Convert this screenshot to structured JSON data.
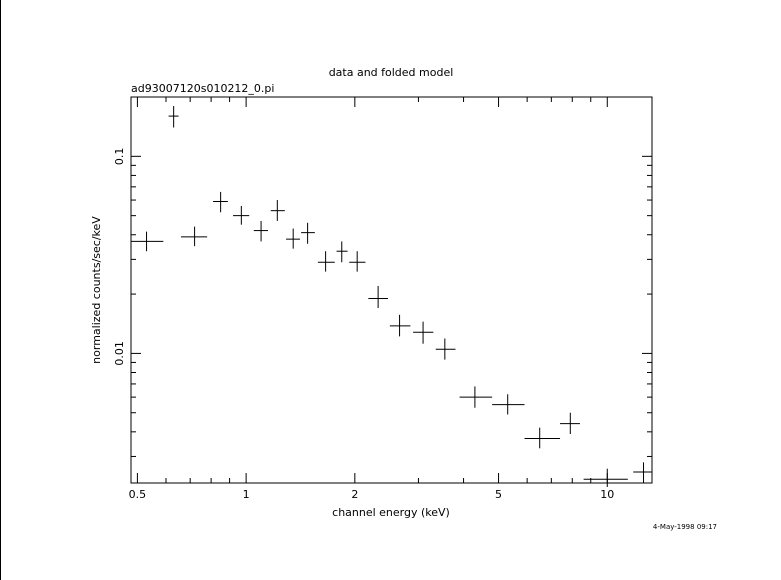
{
  "chart_data": {
    "type": "scatter",
    "title": "data and folded model",
    "subtitle": "ad93007120s010212_0.pi",
    "xlabel": "channel energy (keV)",
    "ylabel": "normalized counts/sec/keV",
    "x_scale": "log",
    "y_scale": "log",
    "xlim": [
      0.48,
      13.3
    ],
    "ylim": [
      0.0022,
      0.2
    ],
    "grid": false,
    "x_ticks": [
      {
        "value": 0.5,
        "label": "0.5"
      },
      {
        "value": 1,
        "label": "1"
      },
      {
        "value": 2,
        "label": "2"
      },
      {
        "value": 5,
        "label": "5"
      },
      {
        "value": 10,
        "label": "10"
      }
    ],
    "y_ticks": [
      {
        "value": 0.1,
        "label": "0.1"
      },
      {
        "value": 0.01,
        "label": "0.01"
      }
    ],
    "points": [
      {
        "x": 0.53,
        "xlo": 0.48,
        "xhi": 0.59,
        "y": 0.037,
        "ylo": 0.033,
        "yhi": 0.0415
      },
      {
        "x": 0.63,
        "xlo": 0.61,
        "xhi": 0.65,
        "y": 0.16,
        "ylo": 0.14,
        "yhi": 0.18
      },
      {
        "x": 0.72,
        "xlo": 0.66,
        "xhi": 0.78,
        "y": 0.039,
        "ylo": 0.035,
        "yhi": 0.044
      },
      {
        "x": 0.85,
        "xlo": 0.81,
        "xhi": 0.89,
        "y": 0.059,
        "ylo": 0.052,
        "yhi": 0.066
      },
      {
        "x": 0.97,
        "xlo": 0.92,
        "xhi": 1.02,
        "y": 0.05,
        "ylo": 0.045,
        "yhi": 0.056
      },
      {
        "x": 1.1,
        "xlo": 1.05,
        "xhi": 1.15,
        "y": 0.042,
        "ylo": 0.037,
        "yhi": 0.047
      },
      {
        "x": 1.22,
        "xlo": 1.17,
        "xhi": 1.28,
        "y": 0.053,
        "ylo": 0.047,
        "yhi": 0.06
      },
      {
        "x": 1.35,
        "xlo": 1.29,
        "xhi": 1.41,
        "y": 0.038,
        "ylo": 0.034,
        "yhi": 0.043
      },
      {
        "x": 1.48,
        "xlo": 1.42,
        "xhi": 1.55,
        "y": 0.041,
        "ylo": 0.036,
        "yhi": 0.046
      },
      {
        "x": 1.66,
        "xlo": 1.58,
        "xhi": 1.76,
        "y": 0.029,
        "ylo": 0.026,
        "yhi": 0.033
      },
      {
        "x": 1.84,
        "xlo": 1.78,
        "xhi": 1.91,
        "y": 0.033,
        "ylo": 0.029,
        "yhi": 0.037
      },
      {
        "x": 2.03,
        "xlo": 1.93,
        "xhi": 2.14,
        "y": 0.029,
        "ylo": 0.026,
        "yhi": 0.033
      },
      {
        "x": 2.32,
        "xlo": 2.18,
        "xhi": 2.47,
        "y": 0.019,
        "ylo": 0.017,
        "yhi": 0.022
      },
      {
        "x": 2.66,
        "xlo": 2.5,
        "xhi": 2.85,
        "y": 0.0138,
        "ylo": 0.0122,
        "yhi": 0.0157
      },
      {
        "x": 3.09,
        "xlo": 2.9,
        "xhi": 3.3,
        "y": 0.0128,
        "ylo": 0.0112,
        "yhi": 0.0145
      },
      {
        "x": 3.55,
        "xlo": 3.35,
        "xhi": 3.8,
        "y": 0.0105,
        "ylo": 0.0093,
        "yhi": 0.0119
      },
      {
        "x": 4.3,
        "xlo": 3.9,
        "xhi": 4.8,
        "y": 0.006,
        "ylo": 0.0053,
        "yhi": 0.0068
      },
      {
        "x": 5.3,
        "xlo": 4.8,
        "xhi": 5.9,
        "y": 0.0055,
        "ylo": 0.0049,
        "yhi": 0.0062
      },
      {
        "x": 6.5,
        "xlo": 5.9,
        "xhi": 7.4,
        "y": 0.0037,
        "ylo": 0.0033,
        "yhi": 0.0042
      },
      {
        "x": 7.9,
        "xlo": 7.4,
        "xhi": 8.4,
        "y": 0.0044,
        "ylo": 0.0039,
        "yhi": 0.005
      },
      {
        "x": 10.0,
        "xlo": 8.6,
        "xhi": 11.4,
        "y": 0.0023,
        "ylo": 0.0021,
        "yhi": 0.0026
      },
      {
        "x": 12.6,
        "xlo": 11.8,
        "xhi": 13.3,
        "y": 0.0025,
        "ylo": 0.0022,
        "yhi": 0.0028
      }
    ]
  },
  "timestamp": "4-May-1998 09:17"
}
